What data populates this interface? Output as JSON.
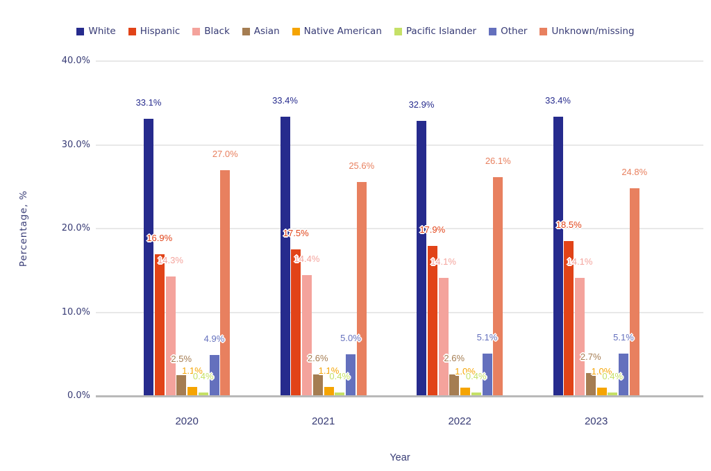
{
  "chart_data": {
    "type": "bar",
    "title": "",
    "xlabel": "Year",
    "ylabel": "Percentage, %",
    "categories": [
      "2020",
      "2021",
      "2022",
      "2023"
    ],
    "series": [
      {
        "name": "White",
        "color": "#262b8d",
        "values": [
          33.1,
          33.4,
          32.9,
          33.4
        ],
        "labels": [
          "33.1%",
          "33.4%",
          "32.9%",
          "33.4%"
        ]
      },
      {
        "name": "Hispanic",
        "color": "#e14318",
        "values": [
          16.9,
          17.5,
          17.9,
          18.5
        ],
        "labels": [
          "16.9%",
          "17.5%",
          "17.9%",
          "18.5%"
        ]
      },
      {
        "name": "Black",
        "color": "#f4a39c",
        "values": [
          14.3,
          14.4,
          14.1,
          14.1
        ],
        "labels": [
          "14.3%",
          "14.4%",
          "14.1%",
          "14.1%"
        ]
      },
      {
        "name": "Asian",
        "color": "#a57d52",
        "values": [
          2.5,
          2.6,
          2.6,
          2.7
        ],
        "labels": [
          "2.5%",
          "2.6%",
          "2.6%",
          "2.7%"
        ]
      },
      {
        "name": "Native American",
        "color": "#f5a402",
        "values": [
          1.1,
          1.1,
          1.0,
          1.0
        ],
        "labels": [
          "1.1%",
          "1.1%",
          "1.0%",
          "1.0%"
        ]
      },
      {
        "name": "Pacific Islander",
        "color": "#c5e067",
        "values": [
          0.4,
          0.4,
          0.4,
          0.4
        ],
        "labels": [
          "0.4%",
          "0.4%",
          "0.4%",
          "0.4%"
        ]
      },
      {
        "name": "Other",
        "color": "#6470bd",
        "values": [
          4.9,
          5.0,
          5.1,
          5.1
        ],
        "labels": [
          "4.9%",
          "5.0%",
          "5.1%",
          "5.1%"
        ]
      },
      {
        "name": "Unknown/missing",
        "color": "#e8805f",
        "values": [
          27.0,
          25.6,
          26.1,
          24.8
        ],
        "labels": [
          "27.0%",
          "25.6%",
          "26.1%",
          "24.8%"
        ]
      }
    ],
    "yticks": [
      {
        "value": 0,
        "label": "0.0%"
      },
      {
        "value": 10,
        "label": "10.0%"
      },
      {
        "value": 20,
        "label": "20.0%"
      },
      {
        "value": 30,
        "label": "30.0%"
      },
      {
        "value": 40,
        "label": "40.0%"
      }
    ],
    "ylim": [
      0,
      40
    ],
    "grid": true,
    "legend_position": "top",
    "colors": {
      "axis_text": "#363a74",
      "gridline": "#e8e8e8",
      "axis_line": "#b9b9b9",
      "background": "#ffffff"
    }
  }
}
